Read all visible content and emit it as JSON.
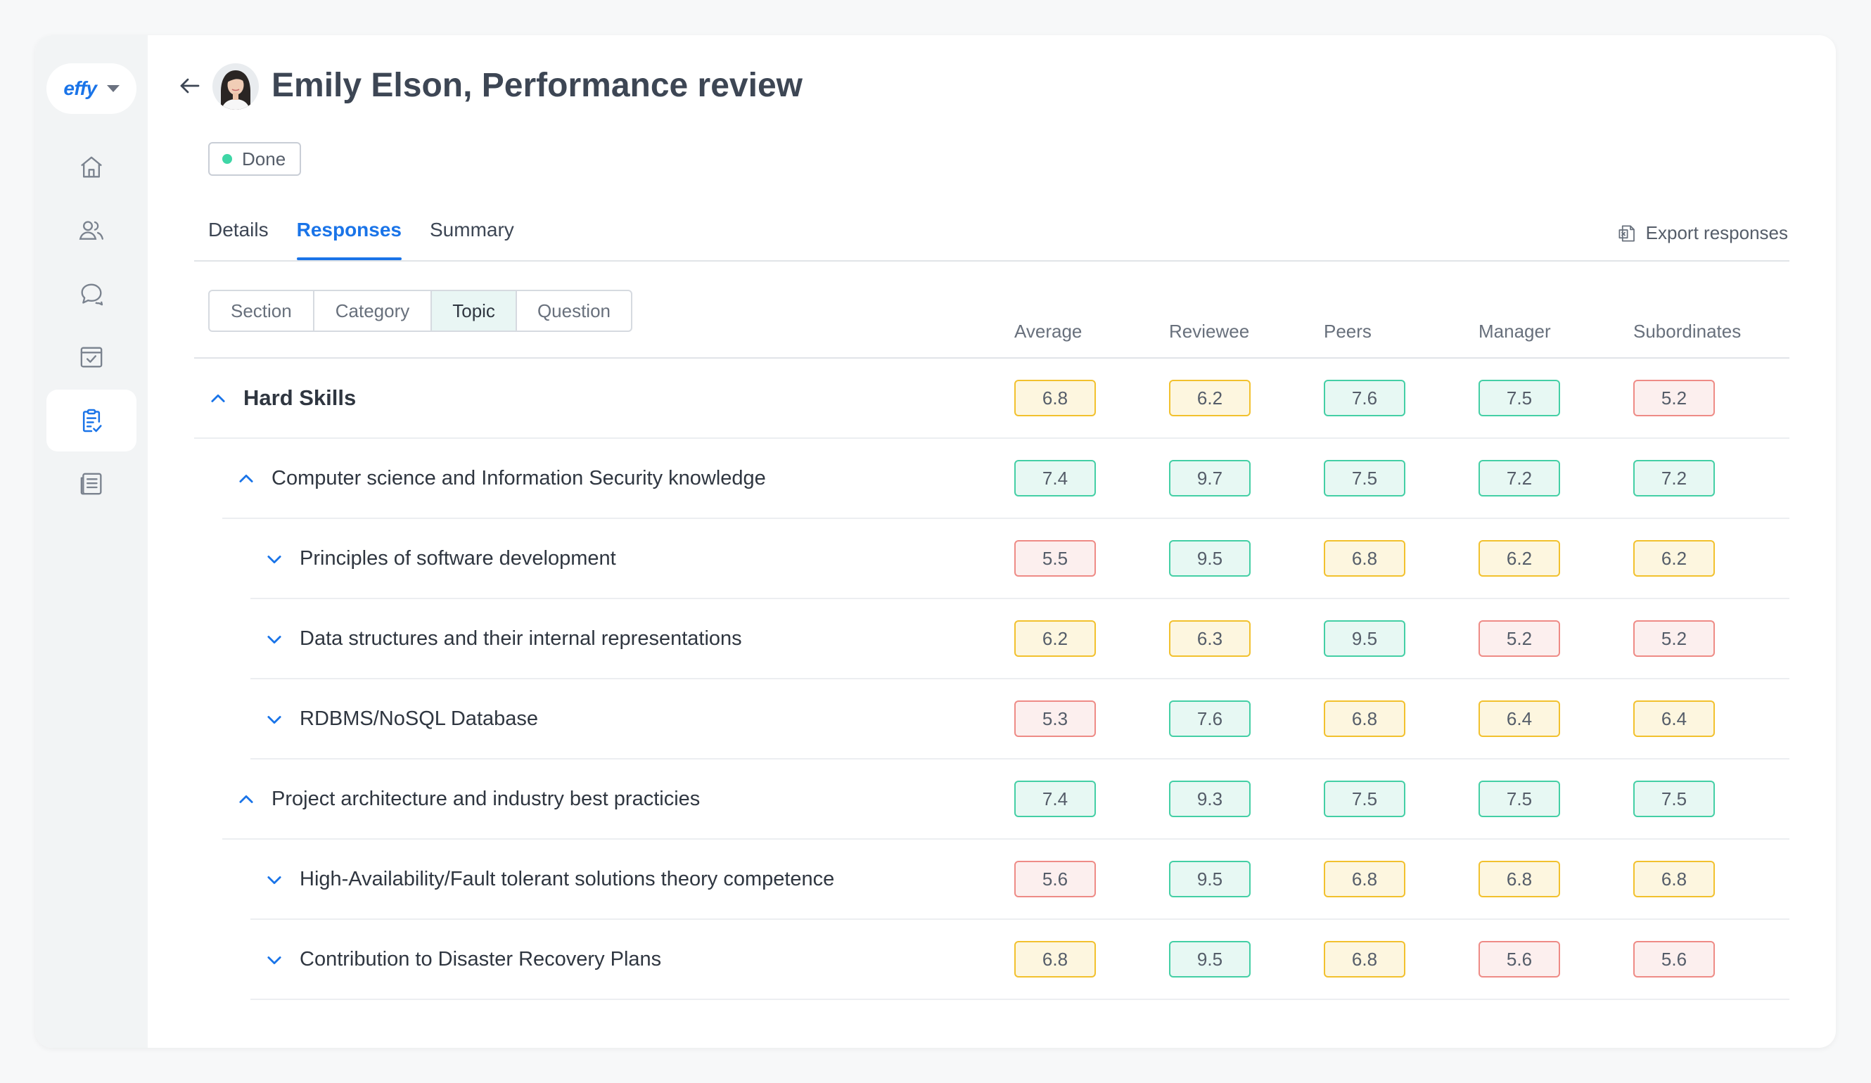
{
  "brand": {
    "logo_text": "effy"
  },
  "sidebar": {
    "items": [
      {
        "icon": "home-icon",
        "active": false
      },
      {
        "icon": "people-icon",
        "active": false
      },
      {
        "icon": "chat-icon",
        "active": false
      },
      {
        "icon": "inbox-check-icon",
        "active": false
      },
      {
        "icon": "clipboard-check-icon",
        "active": true
      },
      {
        "icon": "document-list-icon",
        "active": false
      }
    ]
  },
  "header": {
    "title": "Emily Elson, Performance review",
    "status": "Done",
    "status_color": "#3ed6a6"
  },
  "tabs": [
    {
      "label": "Details",
      "active": false
    },
    {
      "label": "Responses",
      "active": true
    },
    {
      "label": "Summary",
      "active": false
    }
  ],
  "export_label": "Export responses",
  "group_by": {
    "options": [
      "Section",
      "Category",
      "Topic",
      "Question"
    ],
    "selected": "Topic"
  },
  "columns": [
    "Average",
    "Reviewee",
    "Peers",
    "Manager",
    "Subordinates"
  ],
  "rows": [
    {
      "level": 0,
      "label": "Hard Skills",
      "expanded": true,
      "scores": [
        "6.8",
        "6.2",
        "7.6",
        "7.5",
        "5.2"
      ]
    },
    {
      "level": 1,
      "label": "Computer science and Information Security knowledge",
      "expanded": true,
      "scores": [
        "7.4",
        "9.7",
        "7.5",
        "7.2",
        "7.2"
      ]
    },
    {
      "level": 2,
      "label": "Principles of software development",
      "expanded": false,
      "scores": [
        "5.5",
        "9.5",
        "6.8",
        "6.2",
        "6.2"
      ]
    },
    {
      "level": 2,
      "label": "Data structures and their internal representations",
      "expanded": false,
      "scores": [
        "6.2",
        "6.3",
        "9.5",
        "5.2",
        "5.2"
      ]
    },
    {
      "level": 2,
      "label": "RDBMS/NoSQL Database",
      "expanded": false,
      "scores": [
        "5.3",
        "7.6",
        "6.8",
        "6.4",
        "6.4"
      ]
    },
    {
      "level": 1,
      "label": "Project architecture and industry best practicies",
      "expanded": true,
      "scores": [
        "7.4",
        "9.3",
        "7.5",
        "7.5",
        "7.5"
      ]
    },
    {
      "level": 2,
      "label": "High-Availability/Fault tolerant solutions theory competence",
      "expanded": false,
      "scores": [
        "5.6",
        "9.5",
        "6.8",
        "6.8",
        "6.8"
      ]
    },
    {
      "level": 2,
      "label": "Contribution to Disaster Recovery Plans",
      "expanded": false,
      "scores": [
        "6.8",
        "9.5",
        "6.8",
        "5.6",
        "5.6"
      ]
    }
  ],
  "colors": {
    "accent": "#1a74e8",
    "score_good": "#44cfa5",
    "score_mid": "#f2c12e",
    "score_low": "#ee8b86"
  }
}
